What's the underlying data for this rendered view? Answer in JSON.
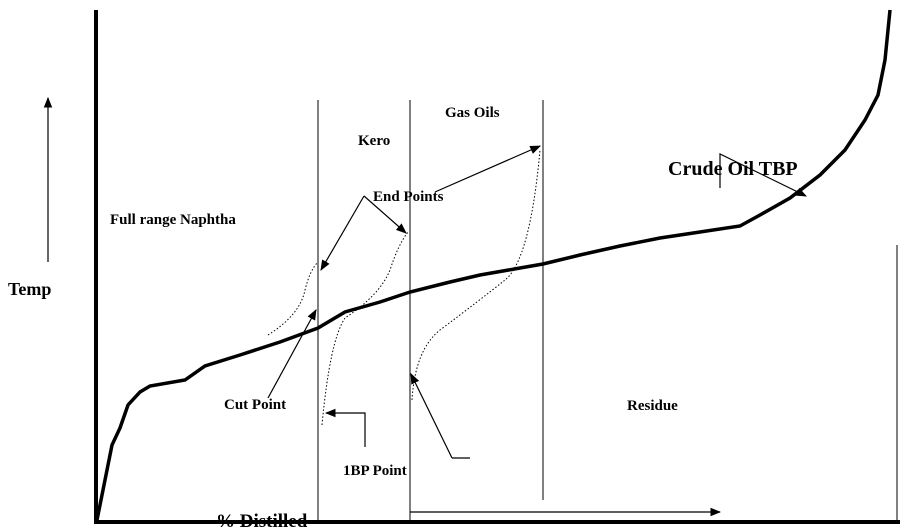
{
  "labels": {
    "temp": "Temp",
    "x_axis": "% Distilled",
    "naphtha": "Full range Naphtha",
    "kero": "Kero",
    "gas_oils": "Gas Oils",
    "end_points": "End Points",
    "crude": "Crude Oil TBP",
    "cut_point": "Cut Point",
    "ibp_point": "1BP Point",
    "residue": "Residue"
  }
}
